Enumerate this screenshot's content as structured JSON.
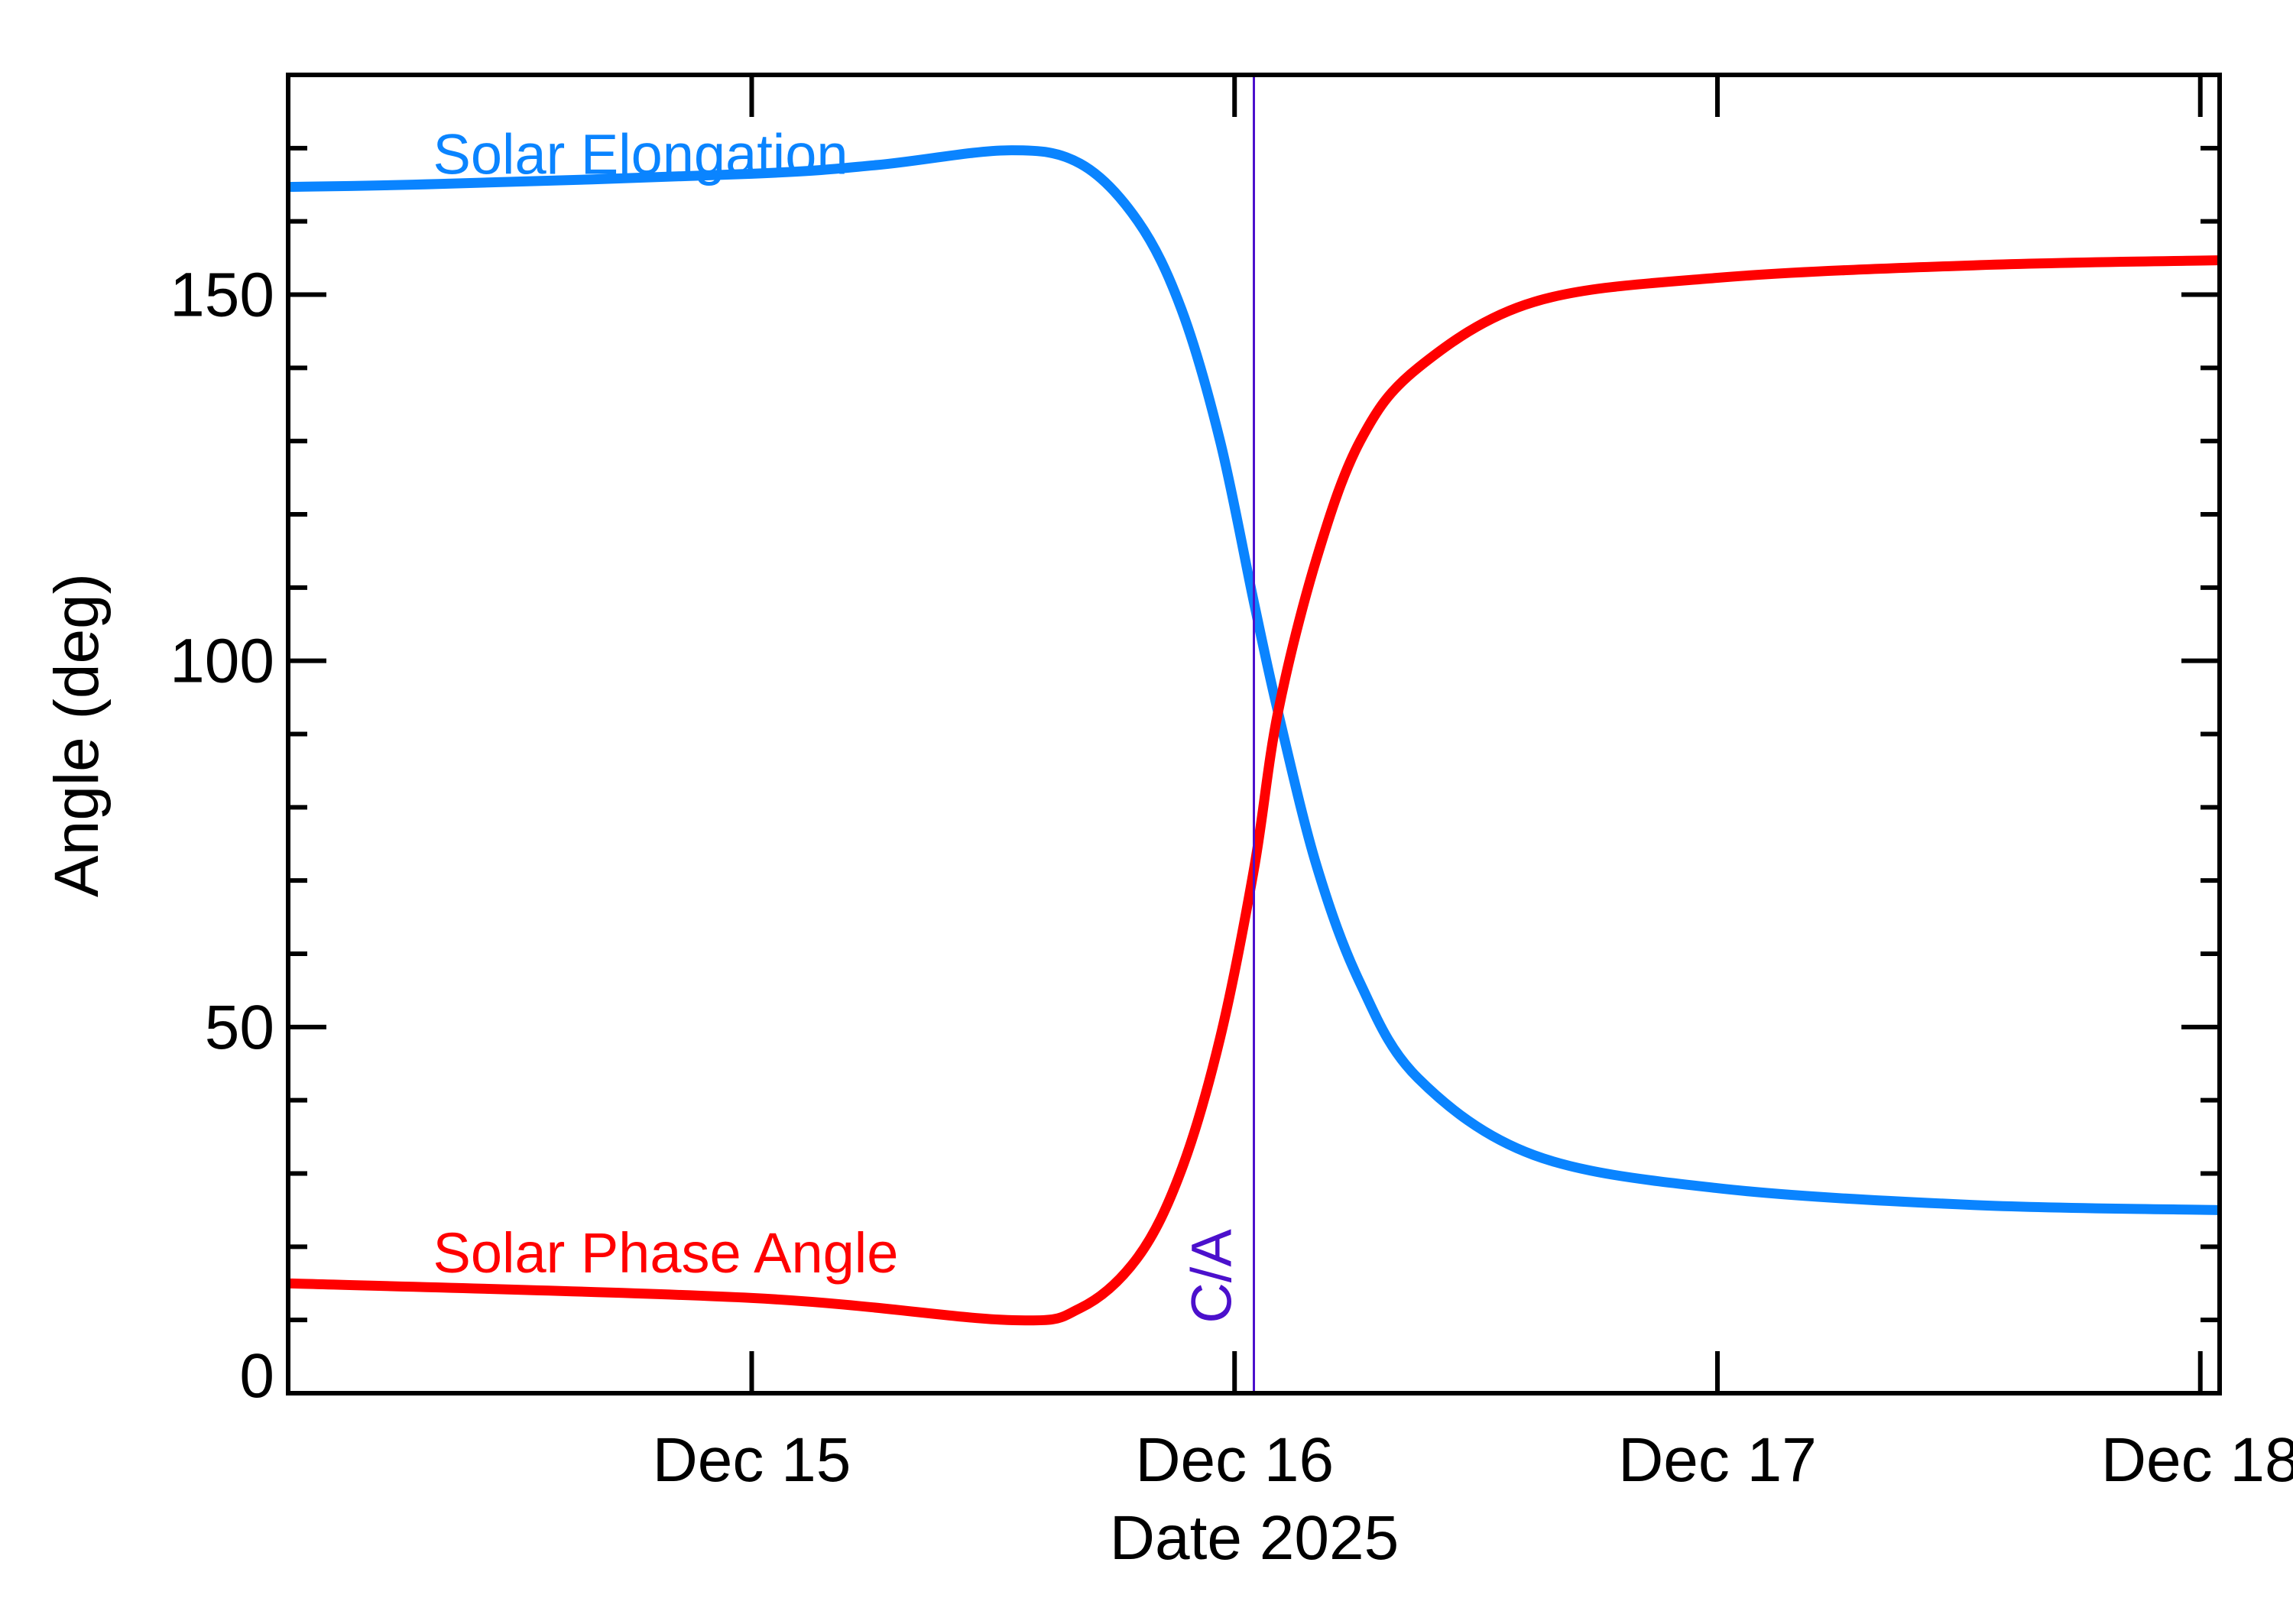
{
  "chart_data": {
    "type": "line",
    "title": "",
    "xlabel": "Date 2025",
    "ylabel": "Angle (deg)",
    "x_unit": "day of December 2025",
    "xlim": [
      14.04,
      18.04
    ],
    "ylim": [
      0,
      180
    ],
    "grid": false,
    "legend_position": "inline labels",
    "x_ticks": [
      {
        "value": 15,
        "label": "Dec 15"
      },
      {
        "value": 16,
        "label": "Dec 16"
      },
      {
        "value": 17,
        "label": "Dec 17"
      },
      {
        "value": 18,
        "label": "Dec 18"
      }
    ],
    "y_ticks": [
      {
        "value": 0,
        "label": "0"
      },
      {
        "value": 50,
        "label": "50"
      },
      {
        "value": 100,
        "label": "100"
      },
      {
        "value": 150,
        "label": "150"
      }
    ],
    "y_minor_step": 10,
    "x_minor_step": null,
    "annotations": [
      {
        "label": "C/A",
        "x": 16.04,
        "type": "vertical-line",
        "color": "#4b10cc"
      }
    ],
    "series": [
      {
        "name": "Solar Elongation",
        "color": "#0a84ff",
        "label_pos": {
          "x": 14.34,
          "y": 166.5
        },
        "x": [
          14.04,
          14.35,
          15.0,
          15.26,
          15.53,
          15.68,
          15.8,
          15.89,
          15.97,
          16.04,
          16.09,
          16.17,
          16.26,
          16.38,
          16.62,
          17.0,
          17.53,
          18.04
        ],
        "values": [
          164.7,
          165.1,
          166.5,
          167.7,
          169.7,
          167.9,
          160.0,
          148.0,
          130.0,
          108.0,
          93.0,
          72.0,
          56.0,
          43.0,
          32.5,
          28.0,
          25.7,
          25.0
        ]
      },
      {
        "name": "Solar Phase Angle",
        "color": "#ff0000",
        "label_pos": {
          "x": 14.34,
          "y": 16.5
        },
        "x": [
          14.04,
          15.0,
          15.53,
          15.68,
          15.8,
          15.89,
          15.97,
          16.04,
          16.09,
          16.17,
          16.26,
          16.38,
          16.62,
          17.0,
          17.53,
          18.04
        ],
        "values": [
          15.0,
          13.0,
          10.0,
          11.6,
          18.6,
          30.5,
          48.5,
          71.5,
          93.0,
          114.0,
          130.0,
          140.0,
          149.0,
          152.3,
          154.0,
          154.7
        ]
      }
    ]
  },
  "axes": {
    "xlabel": "Date 2025",
    "ylabel": "Angle (deg)",
    "ca_label": "C/A",
    "series_labels": {
      "elongation": "Solar Elongation",
      "phase": "Solar Phase Angle"
    },
    "colors": {
      "axis": "#000000",
      "elongation": "#0a84ff",
      "phase": "#ff0000",
      "ca": "#4b10cc"
    }
  }
}
